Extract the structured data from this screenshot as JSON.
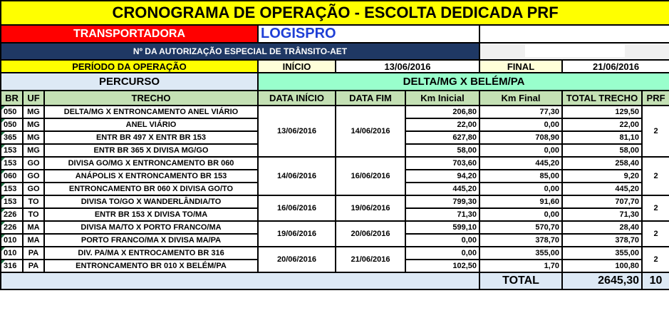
{
  "title": "CRONOGRAMA DE OPERAÇÃO - ESCOLTA DEDICADA PRF",
  "transportadora_label": "TRANSPORTADORA",
  "transportadora": "LOGISPRO",
  "aet_label": "Nº DA AUTORIZAÇÃO ESPECIAL DE TRÂNSITO-AET",
  "periodo_label": "PERÍODO DA OPERAÇÃO",
  "inicio_label": "INÍCIO",
  "inicio": "13/06/2016",
  "final_label": "FINAL",
  "final": "21/06/2016",
  "percurso_label": "PERCURSO",
  "percurso": "DELTA/MG X BELÉM/PA",
  "headers": [
    "BR",
    "UF",
    "TRECHO",
    "DATA INÍCIO",
    "DATA FIM",
    "Km Inicial",
    "Km Final",
    "TOTAL TRECHO",
    "PRF"
  ],
  "groups": [
    {
      "data_inicio": "13/06/2016",
      "data_fim": "14/06/2016",
      "prf": "2",
      "rows": [
        [
          "050",
          "MG",
          "DELTA/MG X ENTRONCAMENTO ANEL VIÁRIO",
          "206,80",
          "77,30",
          "129,50"
        ],
        [
          "050",
          "MG",
          "ANEL VIÁRIO",
          "22,00",
          "0,00",
          "22,00"
        ],
        [
          "365",
          "MG",
          "ENTR BR 497 X ENTR BR 153",
          "627,80",
          "708,90",
          "81,10"
        ],
        [
          "153",
          "MG",
          "ENTR BR 365 X DIVISA MG/GO",
          "58,00",
          "0,00",
          "58,00"
        ]
      ]
    },
    {
      "data_inicio": "14/06/2016",
      "data_fim": "16/06/2016",
      "prf": "2",
      "rows": [
        [
          "153",
          "GO",
          "DIVISA GO/MG X ENTRONCAMENTO BR 060",
          "703,60",
          "445,20",
          "258,40"
        ],
        [
          "060",
          "GO",
          "ANÁPOLIS X ENTRONCAMENTO BR 153",
          "94,20",
          "85,00",
          "9,20"
        ],
        [
          "153",
          "GO",
          "ENTRONCAMENTO BR 060 X DIVISA GO/TO",
          "445,20",
          "0,00",
          "445,20"
        ]
      ]
    },
    {
      "data_inicio": "16/06/2016",
      "data_fim": "19/06/2016",
      "prf": "2",
      "rows": [
        [
          "153",
          "TO",
          "DIVISA TO/GO X WANDERLÂNDIA/TO",
          "799,30",
          "91,60",
          "707,70"
        ],
        [
          "226",
          "TO",
          "ENTR BR 153 X DIVISA TO/MA",
          "71,30",
          "0,00",
          "71,30"
        ]
      ]
    },
    {
      "data_inicio": "19/06/2016",
      "data_fim": "20/06/2016",
      "prf": "2",
      "rows": [
        [
          "226",
          "MA",
          "DIVISA MA/TO X PORTO FRANCO/MA",
          "599,10",
          "570,70",
          "28,40"
        ],
        [
          "010",
          "MA",
          "PORTO FRANCO/MA X DIVISA MA/PA",
          "0,00",
          "378,70",
          "378,70"
        ]
      ]
    },
    {
      "data_inicio": "20/06/2016",
      "data_fim": "21/06/2016",
      "prf": "2",
      "rows": [
        [
          "010",
          "PA",
          "DIV. PA/MA X ENTROCAMENTO BR 316",
          "0,00",
          "355,00",
          "355,00"
        ],
        [
          "316",
          "PA",
          "ENTRONCAMENTO BR 010 X BELÉM/PA",
          "102,50",
          "1,70",
          "100,80"
        ]
      ]
    }
  ],
  "total_label": "TOTAL",
  "total_km": "2645,30",
  "total_prf": "10"
}
